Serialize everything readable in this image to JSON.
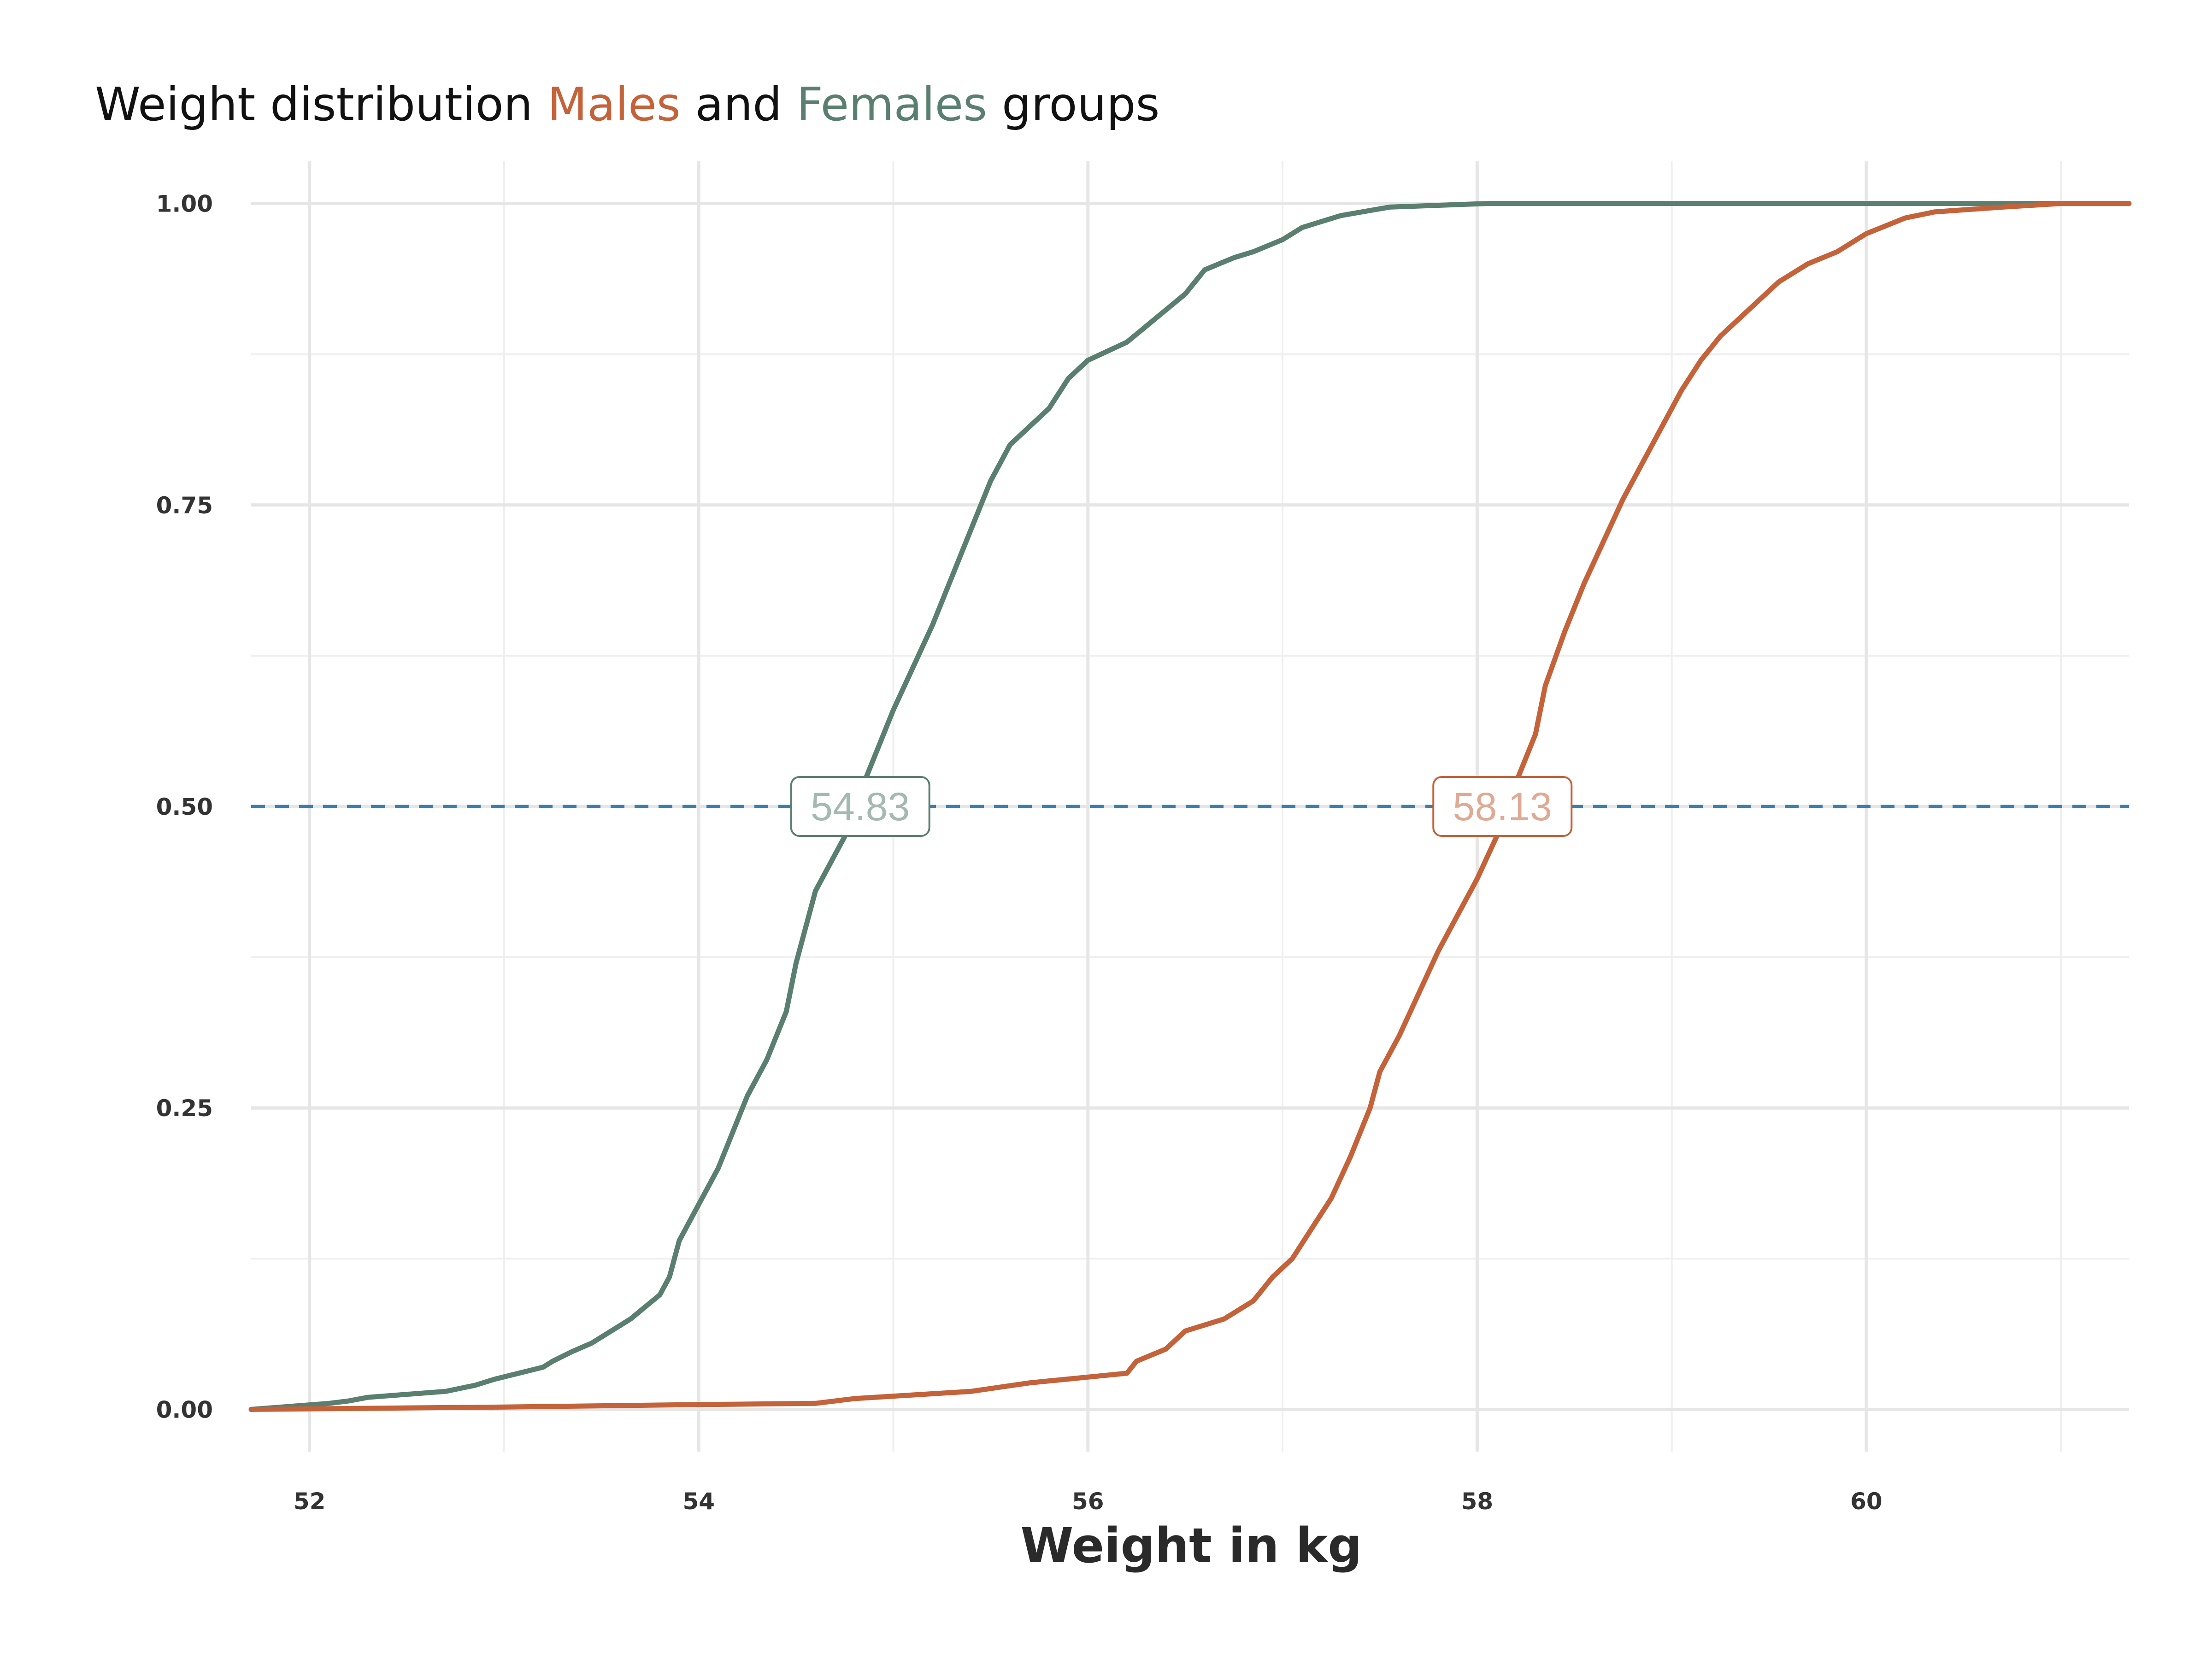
{
  "title": {
    "prefix": "Weight distribution ",
    "males": "Males",
    "middle": " and ",
    "females": "Females",
    "suffix": " groups"
  },
  "colors": {
    "males": "#c4623a",
    "females": "#5a7f70",
    "median_line": "#3d7fab",
    "grid": "#e6e6e6"
  },
  "chart_data": {
    "type": "line",
    "title": "Weight distribution Males and Females groups",
    "xlabel": "Weight in kg",
    "ylabel": "",
    "xlim": [
      51.7,
      61.35
    ],
    "ylim": [
      -0.035,
      1.035
    ],
    "x_ticks": [
      52,
      54,
      56,
      58,
      60
    ],
    "x_tick_labels": [
      "52",
      "54",
      "56",
      "58",
      "60"
    ],
    "y_ticks": [
      0,
      0.25,
      0.5,
      0.75,
      1
    ],
    "y_tick_labels": [
      "0.00",
      "0.25",
      "0.50",
      "0.75",
      "1.00"
    ],
    "grid": true,
    "legend": "in title",
    "reference_line": {
      "y": 0.5,
      "style": "dashed"
    },
    "annotations": [
      {
        "series": "Females",
        "x": 54.83,
        "y": 0.5,
        "label": "54.83"
      },
      {
        "series": "Males",
        "x": 58.13,
        "y": 0.5,
        "label": "58.13"
      }
    ],
    "series": [
      {
        "name": "Females",
        "x": [
          51.7,
          52.1,
          52.2,
          52.3,
          52.7,
          52.85,
          52.95,
          53.2,
          53.25,
          53.35,
          53.45,
          53.55,
          53.65,
          53.8,
          53.85,
          53.9,
          54.0,
          54.1,
          54.2,
          54.25,
          54.35,
          54.45,
          54.5,
          54.55,
          54.6,
          54.7,
          54.8,
          54.85,
          55.0,
          55.2,
          55.3,
          55.4,
          55.5,
          55.6,
          55.7,
          55.8,
          55.9,
          56.0,
          56.2,
          56.35,
          56.5,
          56.6,
          56.75,
          56.85,
          57.0,
          57.1,
          57.2,
          57.3,
          57.55,
          58.05,
          59.0,
          61.35
        ],
        "values": [
          0.0,
          0.005,
          0.007,
          0.01,
          0.015,
          0.02,
          0.025,
          0.035,
          0.04,
          0.048,
          0.055,
          0.065,
          0.075,
          0.095,
          0.11,
          0.14,
          0.17,
          0.2,
          0.24,
          0.26,
          0.29,
          0.33,
          0.37,
          0.4,
          0.43,
          0.46,
          0.49,
          0.52,
          0.58,
          0.65,
          0.69,
          0.73,
          0.77,
          0.8,
          0.815,
          0.83,
          0.855,
          0.87,
          0.885,
          0.905,
          0.925,
          0.945,
          0.955,
          0.96,
          0.97,
          0.98,
          0.985,
          0.99,
          0.997,
          1.0,
          1.0,
          1.0
        ]
      },
      {
        "name": "Males",
        "x": [
          51.7,
          53.0,
          54.0,
          54.6,
          54.8,
          55.4,
          55.7,
          56.2,
          56.25,
          56.4,
          56.5,
          56.7,
          56.85,
          56.95,
          57.05,
          57.15,
          57.25,
          57.35,
          57.45,
          57.5,
          57.6,
          57.7,
          57.8,
          57.9,
          58.0,
          58.1,
          58.2,
          58.3,
          58.35,
          58.45,
          58.55,
          58.65,
          58.75,
          58.85,
          58.95,
          59.05,
          59.15,
          59.25,
          59.35,
          59.45,
          59.55,
          59.7,
          59.85,
          60.0,
          60.2,
          60.35,
          60.7,
          61.0,
          61.35
        ],
        "values": [
          0.0,
          0.002,
          0.004,
          0.005,
          0.009,
          0.015,
          0.022,
          0.03,
          0.04,
          0.05,
          0.065,
          0.075,
          0.09,
          0.11,
          0.125,
          0.15,
          0.175,
          0.21,
          0.25,
          0.28,
          0.31,
          0.345,
          0.38,
          0.41,
          0.44,
          0.475,
          0.52,
          0.56,
          0.6,
          0.645,
          0.685,
          0.72,
          0.755,
          0.785,
          0.815,
          0.845,
          0.87,
          0.89,
          0.905,
          0.92,
          0.935,
          0.95,
          0.96,
          0.975,
          0.988,
          0.993,
          0.997,
          1.0,
          1.0
        ]
      }
    ]
  }
}
